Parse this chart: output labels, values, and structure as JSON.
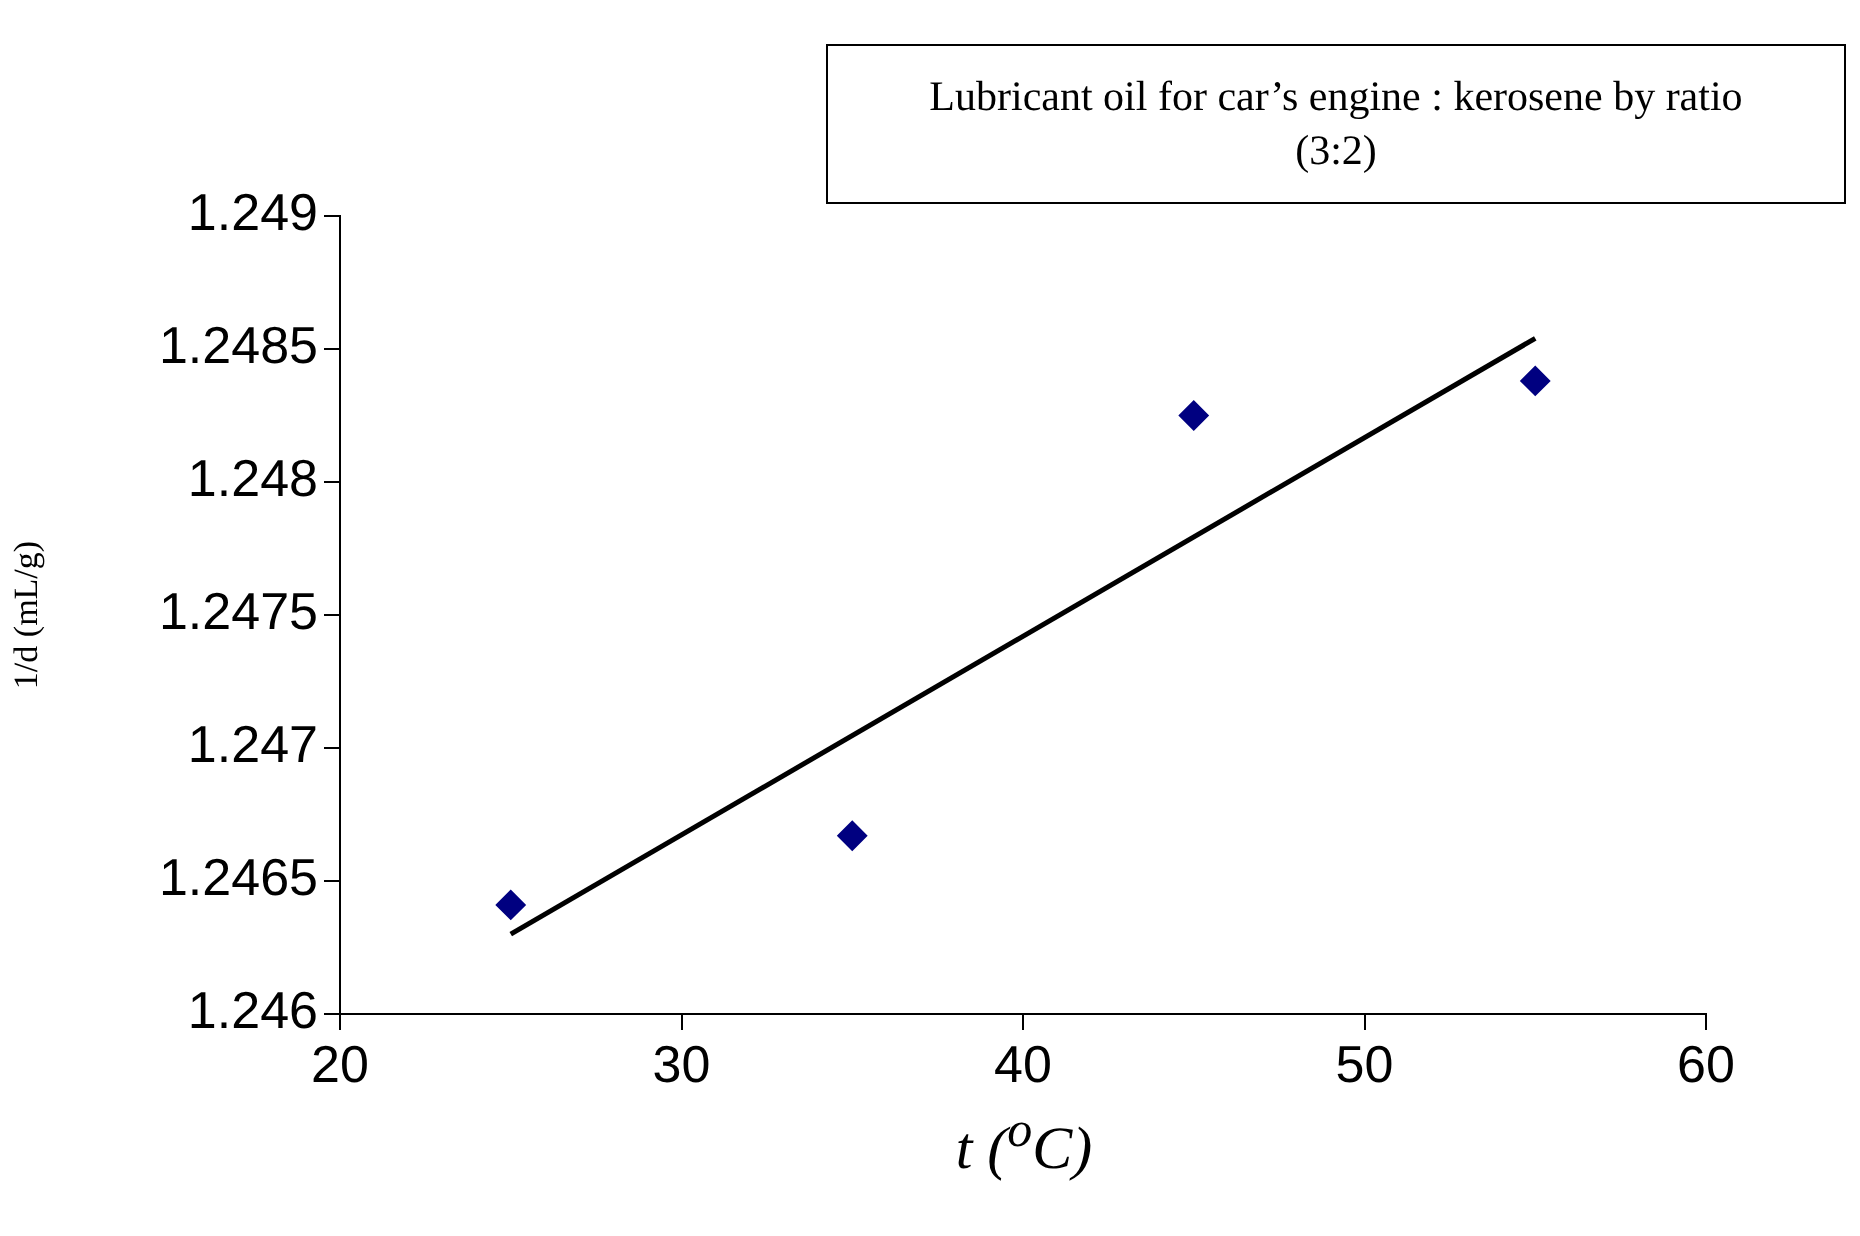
{
  "chart_data": {
    "type": "scatter",
    "title": "Lubricant oil for car’s engine : kerosene by ratio (3:2)",
    "xlabel": "t  ($^{o}$C)",
    "ylabel": "1/d (mL/g)",
    "xlim": [
      20,
      60
    ],
    "xticks": [
      20,
      30,
      40,
      50,
      60
    ],
    "ylim": [
      1.246,
      1.249
    ],
    "yticks": [
      1.246,
      1.2465,
      1.247,
      1.2475,
      1.248,
      1.2485,
      1.249
    ],
    "series": [
      {
        "color": "#000080",
        "marker": "diamond",
        "x": [
          25,
          35,
          45,
          55
        ],
        "values": [
          1.24641,
          1.24667,
          1.24825,
          1.24838
        ]
      },
      {
        "type": "line",
        "color": "#000000",
        "marker": "none",
        "line_style": "solid",
        "x": [
          25,
          55
        ],
        "values": [
          1.2463,
          1.24854
        ]
      }
    ]
  }
}
